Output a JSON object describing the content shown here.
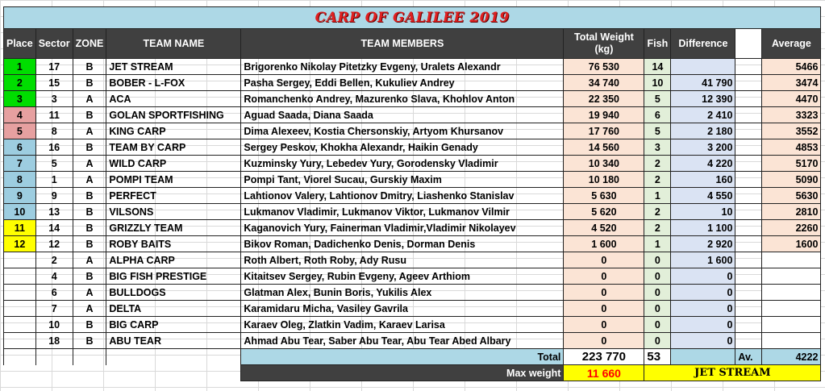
{
  "title": "CARP OF GALILEE 2019",
  "headers": {
    "place": "Place",
    "sector": "Sector",
    "zone": "ZONE",
    "team_name": "TEAM NAME",
    "team_members": "TEAM MEMBERS",
    "total_weight": "Total Weight (kg)",
    "fish": "Fish",
    "difference": "Difference",
    "average": "Average"
  },
  "place_colors": {
    "green": "#00dd00",
    "pink": "#e6a0a0",
    "blue": "#9dcde0",
    "yellow": "#ffff00"
  },
  "rows": [
    {
      "place": "1",
      "place_color": "green",
      "sector": "17",
      "zone": "B",
      "team": "JET STREAM",
      "members": "Brigorenko Nikolay Pitetzky Evgeny, Uralets Alexandr",
      "weight": "76 530",
      "fish": "14",
      "difference": "",
      "average": "5466"
    },
    {
      "place": "2",
      "place_color": "green",
      "sector": "15",
      "zone": "B",
      "team": "BOBER - L-FOX",
      "members": "Pasha Sergey, Eddi Bellen, Kukuliev Andrey",
      "weight": "34 740",
      "fish": "10",
      "difference": "41 790",
      "average": "3474"
    },
    {
      "place": "3",
      "place_color": "green",
      "sector": "3",
      "zone": "A",
      "team": "ACA",
      "members": "Romanchenko Andrey, Mazurenko Slava, Khohlov Anton",
      "weight": "22 350",
      "fish": "5",
      "difference": "12 390",
      "average": "4470"
    },
    {
      "place": "4",
      "place_color": "pink",
      "sector": "11",
      "zone": "B",
      "team": "GOLAN SPORTFISHING",
      "members": "Aguad Saada, Diana Saada",
      "weight": "19 940",
      "fish": "6",
      "difference": "2 410",
      "average": "3323"
    },
    {
      "place": "5",
      "place_color": "pink",
      "sector": "8",
      "zone": "A",
      "team": "KING CARP",
      "members": "Dima Alexeev, Kostia Chersonskiy, Artyom Khursanov",
      "weight": "17 760",
      "fish": "5",
      "difference": "2 180",
      "average": "3552"
    },
    {
      "place": "6",
      "place_color": "blue",
      "sector": "16",
      "zone": "B",
      "team": "TEAM BY CARP",
      "members": "Sergey Peskov, Khokha Alexandr, Haikin Genady",
      "weight": "14 560",
      "fish": "3",
      "difference": "3 200",
      "average": "4853"
    },
    {
      "place": "7",
      "place_color": "blue",
      "sector": "5",
      "zone": "A",
      "team": "WILD CARP",
      "members": "Kuzminsky Yury, Lebedev Yury, Gorodensky Vladimir",
      "weight": "10 340",
      "fish": "2",
      "difference": "4 220",
      "average": "5170"
    },
    {
      "place": "8",
      "place_color": "blue",
      "sector": "1",
      "zone": "A",
      "team": "POMPI TEAM",
      "members": "Pompi Tant, Viorel Sucau, Gurskiy Maxim",
      "weight": "10 180",
      "fish": "2",
      "difference": "160",
      "average": "5090"
    },
    {
      "place": "9",
      "place_color": "blue",
      "sector": "9",
      "zone": "B",
      "team": "PERFECT",
      "members": "Lahtionov Valery, Lahtionov Dmitry, Liashenko Stanislav",
      "weight": "5 630",
      "fish": "1",
      "difference": "4 550",
      "average": "5630"
    },
    {
      "place": "10",
      "place_color": "blue",
      "sector": "13",
      "zone": "B",
      "team": "VILSONS",
      "members": "Lukmanov Vladimir, Lukmanov Viktor, Lukmanov Vilmir",
      "weight": "5 620",
      "fish": "2",
      "difference": "10",
      "average": "2810"
    },
    {
      "place": "11",
      "place_color": "yellow",
      "sector": "14",
      "zone": "B",
      "team": "GRIZZLY TEAM",
      "members": "Kaganovich Yury, Fainerman Vladimir,Vladimir Nikolayev",
      "weight": "4 520",
      "fish": "2",
      "difference": "1 100",
      "average": "2260"
    },
    {
      "place": "12",
      "place_color": "yellow",
      "sector": "12",
      "zone": "B",
      "team": "ROBY BAITS",
      "members": "Bikov Roman, Dadichenko Denis, Dorman Denis",
      "weight": "1 600",
      "fish": "1",
      "difference": "2 920",
      "average": "1600"
    },
    {
      "place": "",
      "place_color": "",
      "sector": "2",
      "zone": "A",
      "team": "ALPHA CARP",
      "members": "Roth Albert, Roth Roby, Ady Rusu",
      "weight": "0",
      "fish": "0",
      "difference": "1 600",
      "average": ""
    },
    {
      "place": "",
      "place_color": "",
      "sector": "4",
      "zone": "B",
      "team": "BIG FISH PRESTIGE",
      "members": "Kitaitsev Sergey, Rubin Evgeny, Ageev Arthiom",
      "weight": "0",
      "fish": "0",
      "difference": "0",
      "average": ""
    },
    {
      "place": "",
      "place_color": "",
      "sector": "6",
      "zone": "A",
      "team": "BULLDOGS",
      "members": "Glatman Alex, Bunin Boris, Yukilis Alex",
      "weight": "0",
      "fish": "0",
      "difference": "0",
      "average": ""
    },
    {
      "place": "",
      "place_color": "",
      "sector": "7",
      "zone": "A",
      "team": "DELTA",
      "members": "Karamidaru Micha, Vasiley Gavrila",
      "weight": "0",
      "fish": "0",
      "difference": "0",
      "average": ""
    },
    {
      "place": "",
      "place_color": "",
      "sector": "10",
      "zone": "B",
      "team": "BIG CARP",
      "members": "Karaev Oleg, Zlatkin Vadim, Karaev Larisa",
      "weight": "0",
      "fish": "0",
      "difference": "0",
      "average": ""
    },
    {
      "place": "",
      "place_color": "",
      "sector": "18",
      "zone": "B",
      "team": "ABU TEAR",
      "members": "Ahmad Abu Tear, Saber Abu Tear, Abu Tear Abed Albary",
      "weight": "0",
      "fish": "0",
      "difference": "0",
      "average": ""
    }
  ],
  "totals": {
    "label": "Total",
    "weight": "223 770",
    "fish": "53",
    "avg_label": "Av.",
    "average": "4222"
  },
  "max_weight": {
    "label": "Max weight",
    "value": "11 660",
    "team": "JET STREAM"
  }
}
